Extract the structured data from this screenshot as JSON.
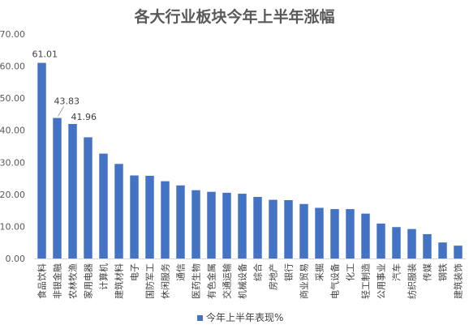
{
  "chart_data": {
    "type": "bar",
    "title": "各大行业板块今年上半年涨幅",
    "xlabel": "",
    "ylabel": "",
    "ylim": [
      0,
      70
    ],
    "yticks": [
      "0.00",
      "10.00",
      "20.00",
      "30.00",
      "40.00",
      "50.00",
      "60.00",
      "70.00"
    ],
    "grid": false,
    "legend_position": "bottom",
    "color": "#4472C4",
    "categories": [
      "食品饮料",
      "非银金融",
      "农林牧渔",
      "家用电器",
      "计算机",
      "建筑材料",
      "电子",
      "国防军工",
      "休闲服务",
      "通信",
      "医药生物",
      "有色金属",
      "交通运输",
      "机械设备",
      "综合",
      "房地产",
      "银行",
      "商业贸易",
      "采掘",
      "电气设备",
      "化工",
      "轻工制造",
      "公用事业",
      "汽车",
      "纺织服装",
      "传媒",
      "钢铁",
      "建筑装饰"
    ],
    "series": [
      {
        "name": "今年上半年表现%",
        "values": [
          61.01,
          43.83,
          41.96,
          37.8,
          32.7,
          29.5,
          25.9,
          25.8,
          24.1,
          22.8,
          21.3,
          20.8,
          20.5,
          20.2,
          19.2,
          18.3,
          18.2,
          17.0,
          15.8,
          15.4,
          15.4,
          14.0,
          10.9,
          9.8,
          9.2,
          7.6,
          5.0,
          4.0
        ]
      }
    ],
    "data_labels": [
      {
        "index": 0,
        "text": "61.01"
      },
      {
        "index": 1,
        "text": "43.83"
      },
      {
        "index": 2,
        "text": "41.96"
      }
    ]
  }
}
